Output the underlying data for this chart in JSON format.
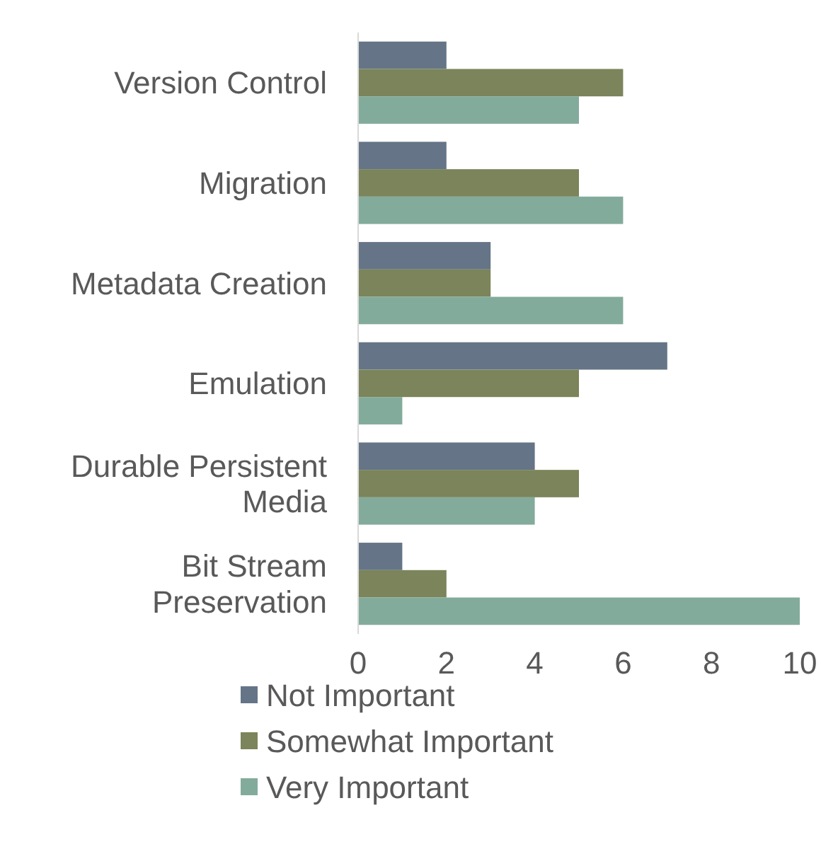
{
  "chart_data": {
    "type": "bar",
    "orientation": "horizontal",
    "categories": [
      "Version Control",
      "Migration",
      "Metadata Creation",
      "Emulation",
      "Durable Persistent Media",
      "Bit Stream Preservation"
    ],
    "series": [
      {
        "name": "Not Important",
        "color": "#657587",
        "values": [
          2,
          2,
          3,
          7,
          4,
          1
        ]
      },
      {
        "name": "Somewhat Important",
        "color": "#7b845a",
        "values": [
          6,
          5,
          3,
          5,
          5,
          2
        ]
      },
      {
        "name": "Very Important",
        "color": "#83ab9b",
        "values": [
          5,
          6,
          6,
          1,
          4,
          10
        ]
      }
    ],
    "xlim": [
      0,
      10
    ],
    "xticks": [
      0,
      2,
      4,
      6,
      8,
      10
    ],
    "grid": false,
    "legend": "bottom"
  }
}
